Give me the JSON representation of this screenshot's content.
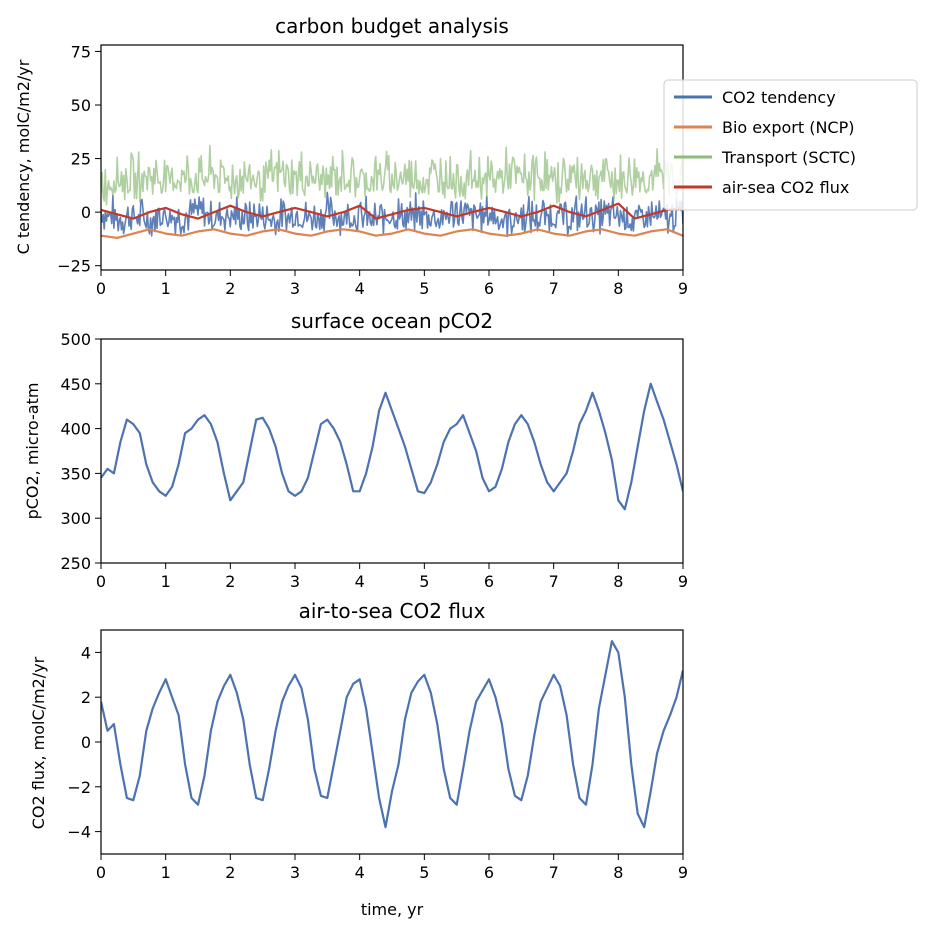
{
  "chart_data": [
    {
      "type": "line",
      "title": "carbon budget analysis",
      "xlabel": "",
      "ylabel": "C tendency, molC/m2/yr",
      "xlim": [
        0,
        9
      ],
      "ylim": [
        -27,
        78
      ],
      "xticks": [
        "0",
        "1",
        "2",
        "3",
        "4",
        "5",
        "6",
        "7",
        "8",
        "9"
      ],
      "yticks": [
        "−25",
        "0",
        "25",
        "50",
        "75"
      ],
      "legend_position": "upper-right-outside",
      "series": [
        {
          "name": "CO2 tendency",
          "color": "#4c72b0",
          "noisy": true,
          "x": [
            0,
            0.25,
            0.5,
            0.75,
            1,
            1.25,
            1.5,
            1.75,
            2,
            2.25,
            2.5,
            2.75,
            3,
            3.25,
            3.5,
            3.75,
            4,
            4.25,
            4.5,
            4.75,
            5,
            5.25,
            5.5,
            5.75,
            6,
            6.25,
            6.5,
            6.75,
            7,
            7.25,
            7.5,
            7.75,
            8,
            8.25,
            8.5,
            8.75,
            9
          ],
          "y": [
            -2,
            -5,
            -4,
            -6,
            -3,
            -5,
            -2,
            -4,
            -3,
            -5,
            -4,
            -6,
            -3,
            -5,
            -2,
            -4,
            -4,
            -6,
            -3,
            -5,
            -3,
            -5,
            -2,
            -4,
            -3,
            -6,
            -4,
            -5,
            -3,
            -5,
            -3,
            -4,
            -3,
            -6,
            -4,
            -5,
            -3
          ],
          "amp": 14
        },
        {
          "name": "Bio export (NCP)",
          "color": "#dd8452",
          "noisy": false,
          "x": [
            0,
            0.25,
            0.5,
            0.75,
            1,
            1.25,
            1.5,
            1.75,
            2,
            2.25,
            2.5,
            2.75,
            3,
            3.25,
            3.5,
            3.75,
            4,
            4.25,
            4.5,
            4.75,
            5,
            5.25,
            5.5,
            5.75,
            6,
            6.25,
            6.5,
            6.75,
            7,
            7.25,
            7.5,
            7.75,
            8,
            8.25,
            8.5,
            8.75,
            9
          ],
          "y": [
            -11,
            -12,
            -10,
            -8,
            -10,
            -11,
            -9,
            -8,
            -10,
            -11,
            -9,
            -8,
            -10,
            -11,
            -9,
            -8,
            -9,
            -11,
            -10,
            -8,
            -10,
            -11,
            -9,
            -8,
            -10,
            -11,
            -10,
            -8,
            -10,
            -11,
            -9,
            -8,
            -10,
            -11,
            -9,
            -8,
            -11
          ]
        },
        {
          "name": "Transport (SCTC)",
          "color": "#8fbc7a",
          "noisy": true,
          "x": [
            0,
            0.25,
            0.5,
            0.75,
            1,
            1.25,
            1.5,
            1.75,
            2,
            2.25,
            2.5,
            2.75,
            3,
            3.25,
            3.5,
            3.75,
            4,
            4.25,
            4.5,
            4.75,
            5,
            5.25,
            5.5,
            5.75,
            6,
            6.25,
            6.5,
            6.75,
            7,
            7.25,
            7.5,
            7.75,
            8,
            8.25,
            8.5,
            8.75,
            9
          ],
          "y": [
            10,
            14,
            12,
            15,
            12,
            14,
            13,
            15,
            12,
            14,
            12,
            15,
            13,
            14,
            12,
            15,
            12,
            14,
            13,
            14,
            12,
            15,
            13,
            14,
            12,
            15,
            13,
            14,
            12,
            14,
            13,
            15,
            12,
            14,
            13,
            15,
            12
          ],
          "amp": 18
        },
        {
          "name": "air-sea CO2 flux",
          "color": "#c0392b",
          "noisy": false,
          "x": [
            0,
            0.25,
            0.5,
            0.75,
            1,
            1.25,
            1.5,
            1.75,
            2,
            2.25,
            2.5,
            2.75,
            3,
            3.25,
            3.5,
            3.75,
            4,
            4.25,
            4.5,
            4.75,
            5,
            5.25,
            5.5,
            5.75,
            6,
            6.25,
            6.5,
            6.75,
            7,
            7.25,
            7.5,
            7.75,
            8,
            8.25,
            8.5,
            8.75,
            9
          ],
          "y": [
            1,
            -1,
            -3,
            0,
            2,
            -1,
            -3,
            0,
            3,
            0,
            -2,
            0,
            2,
            0,
            -2,
            0,
            3,
            -3,
            -1,
            1,
            2,
            0,
            -2,
            0,
            2,
            0,
            -2,
            0,
            3,
            0,
            -2,
            1,
            4,
            -3,
            -1,
            1,
            2
          ]
        }
      ]
    },
    {
      "type": "line",
      "title": "surface ocean pCO2",
      "xlabel": "",
      "ylabel": "pCO2, micro-atm",
      "xlim": [
        0,
        9
      ],
      "ylim": [
        250,
        500
      ],
      "xticks": [
        "0",
        "1",
        "2",
        "3",
        "4",
        "5",
        "6",
        "7",
        "8",
        "9"
      ],
      "yticks": [
        "250",
        "300",
        "350",
        "400",
        "450",
        "500"
      ],
      "series": [
        {
          "name": "",
          "color": "#4c72b0",
          "x": [
            0,
            0.1,
            0.2,
            0.3,
            0.4,
            0.5,
            0.6,
            0.7,
            0.8,
            0.9,
            1.0,
            1.1,
            1.2,
            1.3,
            1.4,
            1.5,
            1.6,
            1.7,
            1.8,
            1.9,
            2.0,
            2.1,
            2.2,
            2.3,
            2.4,
            2.5,
            2.6,
            2.7,
            2.8,
            2.9,
            3.0,
            3.1,
            3.2,
            3.3,
            3.4,
            3.5,
            3.6,
            3.7,
            3.8,
            3.9,
            4.0,
            4.1,
            4.2,
            4.3,
            4.4,
            4.5,
            4.6,
            4.7,
            4.8,
            4.9,
            5.0,
            5.1,
            5.2,
            5.3,
            5.4,
            5.5,
            5.6,
            5.7,
            5.8,
            5.9,
            6.0,
            6.1,
            6.2,
            6.3,
            6.4,
            6.5,
            6.6,
            6.7,
            6.8,
            6.9,
            7.0,
            7.1,
            7.2,
            7.3,
            7.4,
            7.5,
            7.6,
            7.7,
            7.8,
            7.9,
            8.0,
            8.1,
            8.2,
            8.3,
            8.4,
            8.5,
            8.6,
            8.7,
            8.8,
            8.9,
            9.0
          ],
          "y": [
            345,
            355,
            350,
            385,
            410,
            405,
            395,
            360,
            340,
            330,
            325,
            335,
            360,
            395,
            400,
            410,
            415,
            405,
            385,
            350,
            320,
            330,
            340,
            375,
            410,
            412,
            400,
            380,
            350,
            330,
            325,
            330,
            345,
            375,
            405,
            410,
            400,
            385,
            360,
            330,
            330,
            350,
            380,
            420,
            440,
            420,
            400,
            380,
            355,
            330,
            328,
            340,
            360,
            385,
            400,
            405,
            415,
            395,
            375,
            345,
            330,
            335,
            355,
            385,
            405,
            415,
            405,
            385,
            360,
            340,
            330,
            340,
            350,
            375,
            405,
            420,
            440,
            420,
            395,
            365,
            320,
            310,
            340,
            380,
            420,
            450,
            430,
            410,
            385,
            360,
            330
          ]
        }
      ]
    },
    {
      "type": "line",
      "title": "air-to-sea CO2 flux",
      "xlabel": "time, yr",
      "ylabel": "CO2 flux, molC/m2/yr",
      "xlim": [
        0,
        9
      ],
      "ylim": [
        -5,
        5
      ],
      "xticks": [
        "0",
        "1",
        "2",
        "3",
        "4",
        "5",
        "6",
        "7",
        "8",
        "9"
      ],
      "yticks": [
        "−4",
        "−2",
        "0",
        "2",
        "4"
      ],
      "series": [
        {
          "name": "",
          "color": "#4c72b0",
          "x": [
            0,
            0.1,
            0.2,
            0.3,
            0.4,
            0.5,
            0.6,
            0.7,
            0.8,
            0.9,
            1.0,
            1.1,
            1.2,
            1.3,
            1.4,
            1.5,
            1.6,
            1.7,
            1.8,
            1.9,
            2.0,
            2.1,
            2.2,
            2.3,
            2.4,
            2.5,
            2.6,
            2.7,
            2.8,
            2.9,
            3.0,
            3.1,
            3.2,
            3.3,
            3.4,
            3.5,
            3.6,
            3.7,
            3.8,
            3.9,
            4.0,
            4.1,
            4.2,
            4.3,
            4.4,
            4.5,
            4.6,
            4.7,
            4.8,
            4.9,
            5.0,
            5.1,
            5.2,
            5.3,
            5.4,
            5.5,
            5.6,
            5.7,
            5.8,
            5.9,
            6.0,
            6.1,
            6.2,
            6.3,
            6.4,
            6.5,
            6.6,
            6.7,
            6.8,
            6.9,
            7.0,
            7.1,
            7.2,
            7.3,
            7.4,
            7.5,
            7.6,
            7.7,
            7.8,
            7.9,
            8.0,
            8.1,
            8.2,
            8.3,
            8.4,
            8.5,
            8.6,
            8.7,
            8.8,
            8.9,
            9.0
          ],
          "y": [
            1.8,
            0.5,
            0.8,
            -1.0,
            -2.5,
            -2.6,
            -1.5,
            0.5,
            1.5,
            2.2,
            2.8,
            2.0,
            1.2,
            -1.0,
            -2.5,
            -2.8,
            -1.5,
            0.5,
            1.8,
            2.5,
            3.0,
            2.2,
            1.0,
            -1.0,
            -2.5,
            -2.6,
            -1.2,
            0.5,
            1.8,
            2.5,
            3.0,
            2.4,
            1.0,
            -1.2,
            -2.4,
            -2.5,
            -1.0,
            0.5,
            2.0,
            2.6,
            2.8,
            1.5,
            -0.5,
            -2.5,
            -3.8,
            -2.2,
            -1.0,
            1.0,
            2.2,
            2.7,
            3.0,
            2.2,
            0.8,
            -1.2,
            -2.5,
            -2.8,
            -1.2,
            0.5,
            1.8,
            2.3,
            2.8,
            2.0,
            0.8,
            -1.2,
            -2.4,
            -2.6,
            -1.5,
            0.3,
            1.8,
            2.4,
            3.0,
            2.5,
            1.2,
            -1.0,
            -2.5,
            -2.8,
            -1.0,
            1.5,
            3.0,
            4.5,
            4.0,
            2.0,
            -1.0,
            -3.2,
            -3.8,
            -2.2,
            -0.5,
            0.5,
            1.2,
            2.0,
            3.2
          ]
        }
      ]
    }
  ]
}
